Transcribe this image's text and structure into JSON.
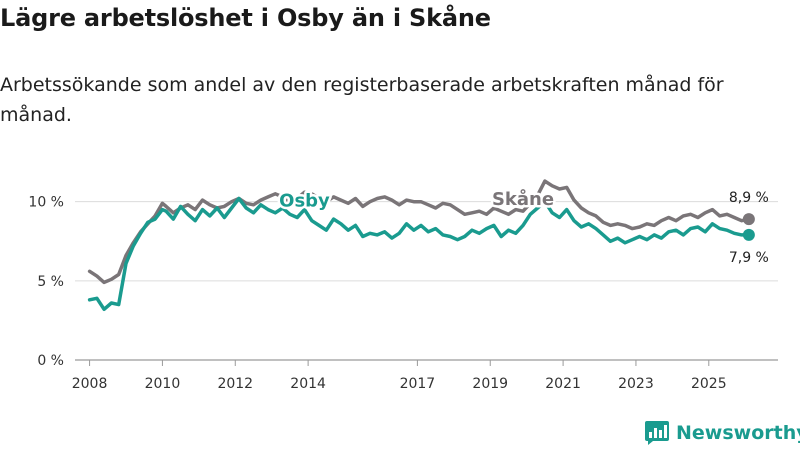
{
  "title": "Lägre arbetslöshet i Osby än i Skåne",
  "subtitle": "Arbetssökande som andel av den registerbaserade arbetskraften månad för månad.",
  "brand": {
    "name": "Newsworthy",
    "color": "#1a9b8f"
  },
  "chart_data": {
    "type": "line",
    "title": "Lägre arbetslöshet i Osby än i Skåne",
    "subtitle": "Arbetssökande som andel av den registerbaserade arbetskraften månad för månad.",
    "xlabel": "",
    "ylabel": "",
    "xlim": [
      2007.6,
      2026.9
    ],
    "ylim": [
      0,
      12
    ],
    "yticks": [
      0,
      5,
      10
    ],
    "ytick_labels": [
      "0 %",
      "5 %",
      "10 %"
    ],
    "xticks": [
      2008,
      2010,
      2012,
      2014,
      2017,
      2019,
      2021,
      2023,
      2025
    ],
    "xtick_labels": [
      "2008",
      "2010",
      "2012",
      "2014",
      "2017",
      "2019",
      "2021",
      "2023",
      "2025"
    ],
    "grid": true,
    "series": [
      {
        "name": "Skåne",
        "color": "#7a7578",
        "x": [
          2008.0,
          2008.2,
          2008.4,
          2008.6,
          2008.8,
          2009.0,
          2009.2,
          2009.4,
          2009.6,
          2009.8,
          2010.0,
          2010.1,
          2010.3,
          2010.5,
          2010.7,
          2010.9,
          2011.1,
          2011.3,
          2011.5,
          2011.7,
          2011.9,
          2012.1,
          2012.3,
          2012.5,
          2012.7,
          2012.9,
          2013.1,
          2013.3,
          2013.5,
          2013.7,
          2013.9,
          2014.1,
          2014.3,
          2014.5,
          2014.7,
          2014.9,
          2015.1,
          2015.3,
          2015.5,
          2015.7,
          2015.9,
          2016.1,
          2016.3,
          2016.5,
          2016.7,
          2016.9,
          2017.1,
          2017.3,
          2017.5,
          2017.7,
          2017.9,
          2018.1,
          2018.3,
          2018.5,
          2018.7,
          2018.9,
          2019.1,
          2019.3,
          2019.5,
          2019.7,
          2019.9,
          2020.1,
          2020.3,
          2020.5,
          2020.7,
          2020.9,
          2021.1,
          2021.3,
          2021.5,
          2021.7,
          2021.9,
          2022.1,
          2022.3,
          2022.5,
          2022.7,
          2022.9,
          2023.1,
          2023.3,
          2023.5,
          2023.7,
          2023.9,
          2024.1,
          2024.3,
          2024.5,
          2024.7,
          2024.9,
          2025.1,
          2025.3,
          2025.5,
          2025.7,
          2025.9,
          2026.1
        ],
        "values": [
          5.6,
          5.3,
          4.9,
          5.1,
          5.4,
          6.6,
          7.4,
          8.1,
          8.6,
          9.1,
          9.9,
          9.7,
          9.3,
          9.6,
          9.8,
          9.5,
          10.1,
          9.8,
          9.6,
          9.7,
          10.0,
          10.2,
          9.9,
          9.8,
          10.1,
          10.3,
          10.5,
          10.3,
          10.0,
          10.2,
          10.6,
          10.5,
          10.2,
          10.0,
          10.3,
          10.1,
          9.9,
          10.2,
          9.7,
          10.0,
          10.2,
          10.3,
          10.1,
          9.8,
          10.1,
          10.0,
          10.0,
          9.8,
          9.6,
          9.9,
          9.8,
          9.5,
          9.2,
          9.3,
          9.4,
          9.2,
          9.6,
          9.4,
          9.2,
          9.5,
          9.4,
          9.9,
          10.4,
          11.3,
          11.0,
          10.8,
          10.9,
          10.1,
          9.6,
          9.3,
          9.1,
          8.7,
          8.5,
          8.6,
          8.5,
          8.3,
          8.4,
          8.6,
          8.5,
          8.8,
          9.0,
          8.8,
          9.1,
          9.2,
          9.0,
          9.3,
          9.5,
          9.1,
          9.2,
          9.0,
          8.8,
          8.9
        ],
        "end_value_label": "8,9 %"
      },
      {
        "name": "Osby",
        "color": "#1a9b8f",
        "x": [
          2008.0,
          2008.2,
          2008.4,
          2008.6,
          2008.8,
          2009.0,
          2009.2,
          2009.4,
          2009.6,
          2009.8,
          2010.0,
          2010.1,
          2010.3,
          2010.5,
          2010.7,
          2010.9,
          2011.1,
          2011.3,
          2011.5,
          2011.7,
          2011.9,
          2012.1,
          2012.3,
          2012.5,
          2012.7,
          2012.9,
          2013.1,
          2013.3,
          2013.5,
          2013.7,
          2013.9,
          2014.1,
          2014.3,
          2014.5,
          2014.7,
          2014.9,
          2015.1,
          2015.3,
          2015.5,
          2015.7,
          2015.9,
          2016.1,
          2016.3,
          2016.5,
          2016.7,
          2016.9,
          2017.1,
          2017.3,
          2017.5,
          2017.7,
          2017.9,
          2018.1,
          2018.3,
          2018.5,
          2018.7,
          2018.9,
          2019.1,
          2019.3,
          2019.5,
          2019.7,
          2019.9,
          2020.1,
          2020.3,
          2020.5,
          2020.7,
          2020.9,
          2021.1,
          2021.3,
          2021.5,
          2021.7,
          2021.9,
          2022.1,
          2022.3,
          2022.5,
          2022.7,
          2022.9,
          2023.1,
          2023.3,
          2023.5,
          2023.7,
          2023.9,
          2024.1,
          2024.3,
          2024.5,
          2024.7,
          2024.9,
          2025.1,
          2025.3,
          2025.5,
          2025.7,
          2025.9,
          2026.1
        ],
        "values": [
          3.8,
          3.9,
          3.2,
          3.6,
          3.5,
          6.1,
          7.2,
          8.0,
          8.7,
          8.9,
          9.5,
          9.4,
          8.9,
          9.7,
          9.2,
          8.8,
          9.5,
          9.1,
          9.6,
          9.0,
          9.6,
          10.2,
          9.6,
          9.3,
          9.8,
          9.5,
          9.3,
          9.6,
          9.2,
          9.0,
          9.5,
          8.8,
          8.5,
          8.2,
          8.9,
          8.6,
          8.2,
          8.5,
          7.8,
          8.0,
          7.9,
          8.1,
          7.7,
          8.0,
          8.6,
          8.2,
          8.5,
          8.1,
          8.3,
          7.9,
          7.8,
          7.6,
          7.8,
          8.2,
          8.0,
          8.3,
          8.5,
          7.8,
          8.2,
          8.0,
          8.5,
          9.2,
          9.6,
          10.0,
          9.3,
          9.0,
          9.5,
          8.8,
          8.4,
          8.6,
          8.3,
          7.9,
          7.5,
          7.7,
          7.4,
          7.6,
          7.8,
          7.6,
          7.9,
          7.7,
          8.1,
          8.2,
          7.9,
          8.3,
          8.4,
          8.1,
          8.6,
          8.3,
          8.2,
          8.0,
          7.9,
          7.9
        ],
        "end_value_label": "7,9 %"
      }
    ],
    "annotations": [
      {
        "text": "Osby",
        "series": "Osby",
        "x": 2013.9,
        "y": 9.7
      },
      {
        "text": "Skåne",
        "series": "Skåne",
        "x": 2019.9,
        "y": 9.8
      }
    ]
  }
}
